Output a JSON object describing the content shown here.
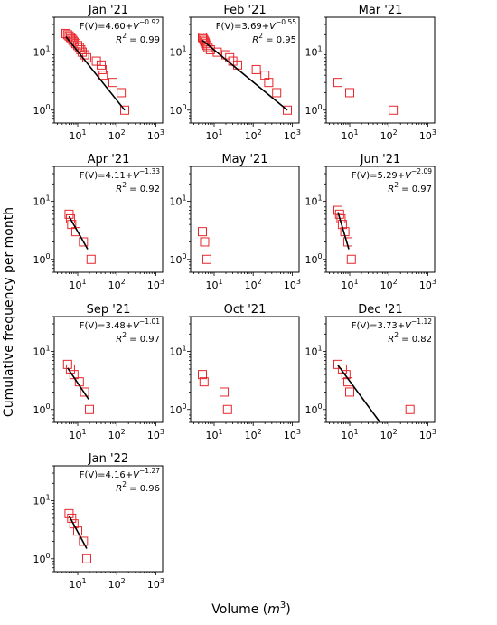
{
  "figure": {
    "ylabel": "Cumulative frequency per month",
    "xlabel_main": "Volume (",
    "xlabel_math": "m",
    "xlabel_sup": "3",
    "xlabel_close": ")"
  },
  "colors": {
    "marker": "#e8262b",
    "fit": "#000000",
    "axis": "#000000"
  },
  "chart_data": [
    {
      "type": "scatter",
      "title": "Jan '21",
      "xscale": "log",
      "yscale": "log",
      "xlim": [
        2.5,
        1500
      ],
      "ylim": [
        0.6,
        40
      ],
      "xticks": [
        "10^1",
        "10^2",
        "10^3"
      ],
      "yticks": [
        "10^0",
        "10^1"
      ],
      "annotation": {
        "equation_prefix": "F(V)=4.60+",
        "base": "V",
        "exponent": "−0.92",
        "r2_prefix": "R",
        "r2_sup": "2",
        "r2_value": " = 0.99"
      },
      "points": [
        [
          5,
          21
        ],
        [
          5.5,
          20
        ],
        [
          6,
          19
        ],
        [
          6.5,
          18
        ],
        [
          7,
          17
        ],
        [
          7.5,
          16
        ],
        [
          8,
          15
        ],
        [
          9,
          14
        ],
        [
          10,
          13
        ],
        [
          11,
          12
        ],
        [
          12,
          11
        ],
        [
          13,
          10
        ],
        [
          15,
          9
        ],
        [
          17,
          8
        ],
        [
          30,
          7
        ],
        [
          40,
          6
        ],
        [
          42,
          5
        ],
        [
          45,
          4
        ],
        [
          80,
          3
        ],
        [
          130,
          2
        ],
        [
          160,
          1
        ]
      ],
      "fit": [
        [
          5,
          18.5
        ],
        [
          160,
          1
        ]
      ]
    },
    {
      "type": "scatter",
      "title": "Feb '21",
      "xscale": "log",
      "yscale": "log",
      "xlim": [
        2.5,
        1500
      ],
      "ylim": [
        0.6,
        40
      ],
      "xticks": [
        "10^1",
        "10^2",
        "10^3"
      ],
      "yticks": [
        "10^0",
        "10^1"
      ],
      "annotation": {
        "equation_prefix": "F(V)=3.69+",
        "base": "V",
        "exponent": "−0.55",
        "r2_prefix": "R",
        "r2_sup": "2",
        "r2_value": " = 0.95"
      },
      "points": [
        [
          5,
          18
        ],
        [
          5.2,
          17
        ],
        [
          5.5,
          16
        ],
        [
          5.8,
          15
        ],
        [
          6,
          14
        ],
        [
          6.5,
          13
        ],
        [
          7,
          12
        ],
        [
          8,
          11
        ],
        [
          12,
          10
        ],
        [
          20,
          9
        ],
        [
          25,
          8
        ],
        [
          30,
          7
        ],
        [
          40,
          6
        ],
        [
          120,
          5
        ],
        [
          200,
          4
        ],
        [
          250,
          3
        ],
        [
          400,
          2
        ],
        [
          750,
          1
        ]
      ],
      "fit": [
        [
          5,
          16
        ],
        [
          750,
          1
        ]
      ]
    },
    {
      "type": "scatter",
      "title": "Mar '21",
      "xscale": "log",
      "yscale": "log",
      "xlim": [
        2.5,
        1500
      ],
      "ylim": [
        0.6,
        40
      ],
      "xticks": [
        "10^1",
        "10^2",
        "10^3"
      ],
      "yticks": [
        "10^0",
        "10^1"
      ],
      "points": [
        [
          5,
          3
        ],
        [
          10,
          2
        ],
        [
          130,
          1
        ]
      ]
    },
    {
      "type": "scatter",
      "title": "Apr '21",
      "xscale": "log",
      "yscale": "log",
      "xlim": [
        2.5,
        1500
      ],
      "ylim": [
        0.6,
        40
      ],
      "xticks": [
        "10^1",
        "10^2",
        "10^3"
      ],
      "yticks": [
        "10^0",
        "10^1"
      ],
      "annotation": {
        "equation_prefix": "F(V)=4.11+",
        "base": "V",
        "exponent": "−1.33",
        "r2_prefix": "R",
        "r2_sup": "2",
        "r2_value": " = 0.92"
      },
      "points": [
        [
          6,
          6
        ],
        [
          6.5,
          5
        ],
        [
          7,
          4
        ],
        [
          9,
          3
        ],
        [
          14,
          2
        ],
        [
          22,
          1
        ]
      ],
      "fit": [
        [
          6,
          5.5
        ],
        [
          18,
          1.5
        ]
      ]
    },
    {
      "type": "scatter",
      "title": "May '21",
      "xscale": "log",
      "yscale": "log",
      "xlim": [
        2.5,
        1500
      ],
      "ylim": [
        0.6,
        40
      ],
      "xticks": [
        "10^1",
        "10^2",
        "10^3"
      ],
      "yticks": [
        "10^0",
        "10^1"
      ],
      "points": [
        [
          5,
          3
        ],
        [
          5.7,
          2
        ],
        [
          6.5,
          1
        ]
      ]
    },
    {
      "type": "scatter",
      "title": "Jun '21",
      "xscale": "log",
      "yscale": "log",
      "xlim": [
        2.5,
        1500
      ],
      "ylim": [
        0.6,
        40
      ],
      "xticks": [
        "10^1",
        "10^2",
        "10^3"
      ],
      "yticks": [
        "10^0",
        "10^1"
      ],
      "annotation": {
        "equation_prefix": "F(V)=5.29+",
        "base": "V",
        "exponent": "−2.09",
        "r2_prefix": "R",
        "r2_sup": "2",
        "r2_value": " = 0.97"
      },
      "points": [
        [
          5,
          7
        ],
        [
          5.5,
          6
        ],
        [
          6,
          5
        ],
        [
          6.5,
          4
        ],
        [
          7.5,
          3
        ],
        [
          9,
          2
        ],
        [
          11,
          1
        ]
      ],
      "fit": [
        [
          5,
          6.5
        ],
        [
          9.5,
          1.5
        ]
      ]
    },
    {
      "type": "scatter",
      "title": "Sep '21",
      "xscale": "log",
      "yscale": "log",
      "xlim": [
        2.5,
        1500
      ],
      "ylim": [
        0.6,
        40
      ],
      "xticks": [
        "10^1",
        "10^2",
        "10^3"
      ],
      "yticks": [
        "10^0",
        "10^1"
      ],
      "annotation": {
        "equation_prefix": "F(V)=3.48+",
        "base": "V",
        "exponent": "−1.01",
        "r2_prefix": "R",
        "r2_sup": "2",
        "r2_value": " = 0.97"
      },
      "points": [
        [
          5.5,
          6
        ],
        [
          6.5,
          5
        ],
        [
          8,
          4
        ],
        [
          11,
          3
        ],
        [
          15,
          2
        ],
        [
          20,
          1
        ]
      ],
      "fit": [
        [
          5.5,
          5.2
        ],
        [
          19,
          1.5
        ]
      ]
    },
    {
      "type": "scatter",
      "title": "Oct '21",
      "xscale": "log",
      "yscale": "log",
      "xlim": [
        2.5,
        1500
      ],
      "ylim": [
        0.6,
        40
      ],
      "xticks": [
        "10^1",
        "10^2",
        "10^3"
      ],
      "yticks": [
        "10^0",
        "10^1"
      ],
      "points": [
        [
          5,
          4
        ],
        [
          5.5,
          3
        ],
        [
          18,
          2
        ],
        [
          22,
          1
        ]
      ]
    },
    {
      "type": "scatter",
      "title": "Dec '21",
      "xscale": "log",
      "yscale": "log",
      "xlim": [
        2.5,
        1500
      ],
      "ylim": [
        0.6,
        40
      ],
      "xticks": [
        "10^1",
        "10^2",
        "10^3"
      ],
      "yticks": [
        "10^0",
        "10^1"
      ],
      "annotation": {
        "equation_prefix": "F(V)=3.73+",
        "base": "V",
        "exponent": "−1.12",
        "r2_prefix": "R",
        "r2_sup": "2",
        "r2_value": " = 0.82"
      },
      "points": [
        [
          5,
          6
        ],
        [
          6.5,
          5
        ],
        [
          8,
          4
        ],
        [
          9,
          3
        ],
        [
          10,
          2
        ],
        [
          350,
          1
        ]
      ],
      "fit": [
        [
          5,
          5.8
        ],
        [
          60,
          0.6
        ]
      ]
    },
    {
      "type": "scatter",
      "title": "Jan '22",
      "xscale": "log",
      "yscale": "log",
      "xlim": [
        2.5,
        1500
      ],
      "ylim": [
        0.6,
        40
      ],
      "xticks": [
        "10^1",
        "10^2",
        "10^3"
      ],
      "yticks": [
        "10^0",
        "10^1"
      ],
      "annotation": {
        "equation_prefix": "F(V)=4.16+",
        "base": "V",
        "exponent": "−1.27",
        "r2_prefix": "R",
        "r2_sup": "2",
        "r2_value": " = 0.96"
      },
      "points": [
        [
          6,
          6
        ],
        [
          7,
          5
        ],
        [
          8,
          4
        ],
        [
          10,
          3
        ],
        [
          14,
          2
        ],
        [
          17,
          1
        ]
      ],
      "fit": [
        [
          6,
          5.5
        ],
        [
          17,
          1.5
        ]
      ]
    }
  ]
}
